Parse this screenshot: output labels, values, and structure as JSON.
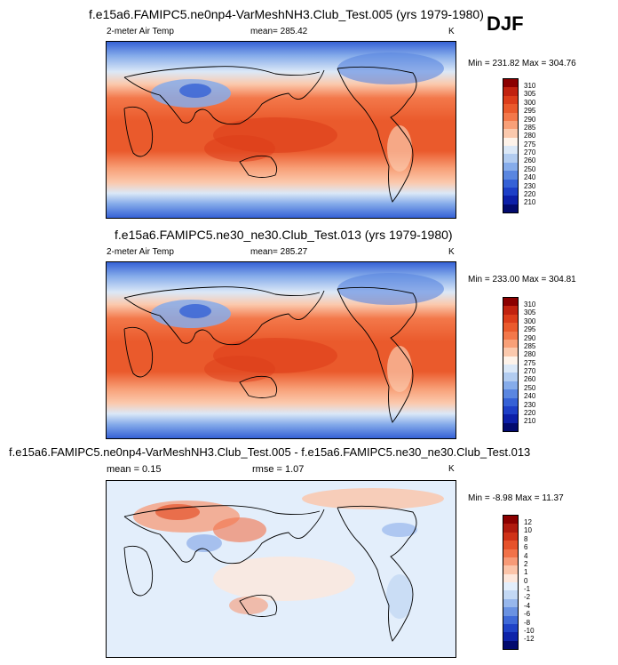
{
  "season": "DJF",
  "panels": [
    {
      "title": "f.e15a6.FAMIPC5.ne0np4-VarMeshNH3.Club_Test.005 (yrs 1979-1980)",
      "variable": "2-meter Air Temp",
      "stat_text": "mean= 285.42",
      "units": "K",
      "minmax": "Min = 231.82 Max = 304.76",
      "colorbar_labels": [
        "310",
        "305",
        "300",
        "295",
        "290",
        "285",
        "280",
        "275",
        "270",
        "260",
        "250",
        "240",
        "230",
        "220",
        "210"
      ],
      "colorbar_colors": [
        "#8b0000",
        "#c1220f",
        "#dc3d1a",
        "#ea5a2c",
        "#f3784a",
        "#f8a078",
        "#fbc9ad",
        "#fef3ea",
        "#dbe8f7",
        "#b2ccf0",
        "#86acea",
        "#5a86e0",
        "#3561d6",
        "#1d3fc7",
        "#0c1fa8",
        "#020a6e"
      ]
    },
    {
      "title": "f.e15a6.FAMIPC5.ne30_ne30.Club_Test.013 (yrs 1979-1980)",
      "variable": "2-meter Air Temp",
      "stat_text": "mean= 285.27",
      "units": "K",
      "minmax": "Min = 233.00 Max = 304.81",
      "colorbar_labels": [
        "310",
        "305",
        "300",
        "295",
        "290",
        "285",
        "280",
        "275",
        "270",
        "260",
        "250",
        "240",
        "230",
        "220",
        "210"
      ],
      "colorbar_colors": [
        "#8b0000",
        "#c1220f",
        "#dc3d1a",
        "#ea5a2c",
        "#f3784a",
        "#f8a078",
        "#fbc9ad",
        "#fef3ea",
        "#dbe8f7",
        "#b2ccf0",
        "#86acea",
        "#5a86e0",
        "#3561d6",
        "#1d3fc7",
        "#0c1fa8",
        "#020a6e"
      ]
    },
    {
      "title": "f.e15a6.FAMIPC5.ne0np4-VarMeshNH3.Club_Test.005 - f.e15a6.FAMIPC5.ne30_ne30.Club_Test.013",
      "stat_text": "mean = 0.15",
      "rmse_text": "rmse = 1.07",
      "units": "K",
      "minmax": "Min = -8.98 Max = 11.37",
      "colorbar_labels": [
        "12",
        "10",
        "8",
        "6",
        "4",
        "2",
        "1",
        "0",
        "-1",
        "-2",
        "-4",
        "-6",
        "-8",
        "-10",
        "-12"
      ],
      "colorbar_colors": [
        "#8b0000",
        "#b01a0e",
        "#cf3218",
        "#e6522b",
        "#f27249",
        "#f79a77",
        "#fbc4a9",
        "#fde7dc",
        "#e3eefb",
        "#c3d8f4",
        "#97b7ec",
        "#6a92e2",
        "#3f6ad8",
        "#1f43c7",
        "#0d23a9",
        "#020a6e"
      ]
    }
  ]
}
